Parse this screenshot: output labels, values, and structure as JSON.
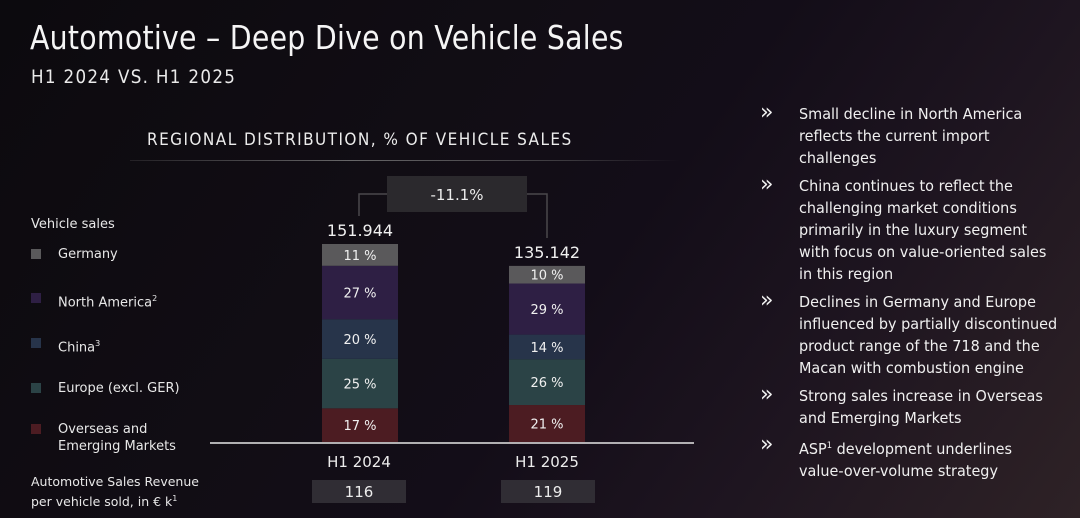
{
  "header": {
    "title": "Automotive – Deep Dive on Vehicle Sales",
    "subtitle": "H1 2024 VS. H1 2025"
  },
  "colors": {
    "germany": "#5a595b",
    "north_america": "#2e1f44",
    "china": "#27344a",
    "europe": "#2b4346",
    "overseas": "#4c1c22",
    "change_box": "#2b292d",
    "revenue_box": "#302d34"
  },
  "legend": {
    "title": "Vehicle sales",
    "items": [
      {
        "label": "Germany",
        "sup": "",
        "color": "#5a595b"
      },
      {
        "label": "North America",
        "sup": "2",
        "color": "#2e1f44"
      },
      {
        "label": "China",
        "sup": "3",
        "color": "#27344a"
      },
      {
        "label": "Europe (excl. GER)",
        "sup": "",
        "color": "#2b4346"
      },
      {
        "label": "Overseas and",
        "label2": "Emerging Markets",
        "sup": "",
        "color": "#4c1c22"
      }
    ]
  },
  "revenue": {
    "label_line1": "Automotive Sales Revenue",
    "label_line2": "per vehicle sold, in € k",
    "sup": "1"
  },
  "chart_data": {
    "type": "bar",
    "stacked": true,
    "title": "REGIONAL DISTRIBUTION, % OF VEHICLE SALES",
    "categories": [
      "H1 2024",
      "H1 2025"
    ],
    "totals": [
      151944,
      135142
    ],
    "total_labels": [
      "151.944",
      "135.142"
    ],
    "change_label": "-11.1%",
    "series": [
      {
        "name": "Overseas and Emerging Markets",
        "values": [
          17,
          21
        ]
      },
      {
        "name": "Europe (excl. GER)",
        "values": [
          25,
          26
        ]
      },
      {
        "name": "China",
        "values": [
          20,
          14
        ]
      },
      {
        "name": "North America",
        "values": [
          27,
          29
        ]
      },
      {
        "name": "Germany",
        "values": [
          11,
          10
        ]
      }
    ],
    "unit": "%",
    "revenue_per_vehicle": [
      116,
      119
    ],
    "xlabel": "",
    "ylabel": ""
  },
  "bullets": [
    {
      "text": "Small decline in North America reflects the current import challenges"
    },
    {
      "text": "China continues to reflect the challenging market conditions primarily in the luxury segment with focus on value-oriented sales in this region"
    },
    {
      "text": "Declines in Germany and Europe influenced by partially discontinued product range of the 718 and the Macan with combustion engine"
    },
    {
      "text": "Strong sales increase in Overseas and Emerging Markets"
    },
    {
      "pre": "ASP",
      "sup": "1",
      "text": " development underlines value-over-volume strategy"
    }
  ],
  "icons": {
    "bullet": "double-chevron-right-icon"
  }
}
